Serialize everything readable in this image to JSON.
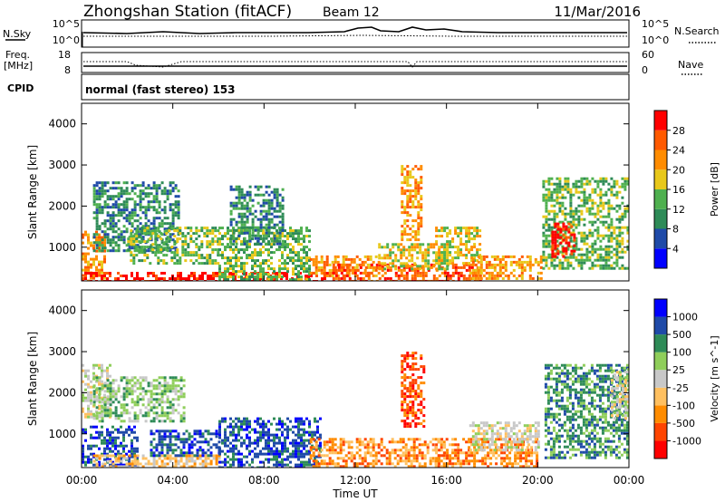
{
  "header": {
    "title": "Zhongshan Station (fitACF)",
    "beam": "Beam 12",
    "date": "11/Mar/2016"
  },
  "panels": {
    "nsky": {
      "left_label": "N.Sky",
      "left_ticks": [
        "10^5",
        "10^0"
      ],
      "right_ticks": [
        "10^5",
        "10^0"
      ],
      "right_label": "N.Search"
    },
    "freq": {
      "left_label_1": "Freq.",
      "left_label_2": "[MHz]",
      "left_ticks": [
        "18",
        "8"
      ],
      "right_ticks": [
        "60",
        "0"
      ],
      "right_label": "Nave"
    },
    "cpid": {
      "left_label": "CPID",
      "text": "normal (fast stereo) 153"
    }
  },
  "colors": {
    "power_scale": [
      "#0000ff",
      "#1f4aa8",
      "#2e8b57",
      "#4fb04f",
      "#e8c81a",
      "#ff8c00",
      "#ff5a00",
      "#ff0000"
    ],
    "velocity_scale": [
      "#ff0000",
      "#ff4500",
      "#ff8c00",
      "#ffc060",
      "#c8c8c8",
      "#8fce5a",
      "#2e8b57",
      "#1f4aa8",
      "#0000ff"
    ]
  },
  "chart_data": [
    {
      "type": "heatmap",
      "title": "",
      "xlabel": "",
      "ylabel": "Slant Range [km]",
      "x_ticks": [
        "00:00",
        "04:00",
        "08:00",
        "12:00",
        "16:00",
        "20:00",
        "00:00"
      ],
      "y_ticks": [
        "1000",
        "2000",
        "3000",
        "4000"
      ],
      "ylim": [
        180,
        4500
      ],
      "colorbar": {
        "label": "Power [dB]",
        "ticks": [
          "4",
          "8",
          "12",
          "16",
          "20",
          "24",
          "28"
        ],
        "range": [
          0,
          32
        ]
      },
      "echo_regions": [
        {
          "t": [
            0.0,
            1.0
          ],
          "r": [
            180,
            1400
          ],
          "c": 5
        },
        {
          "t": [
            0.5,
            4.2
          ],
          "r": [
            900,
            2600
          ],
          "c": 2
        },
        {
          "t": [
            0.0,
            10.8
          ],
          "r": [
            180,
            400
          ],
          "c": 7
        },
        {
          "t": [
            2.0,
            6.0
          ],
          "r": [
            600,
            1500
          ],
          "c": 3
        },
        {
          "t": [
            6.0,
            10.0
          ],
          "r": [
            180,
            1500
          ],
          "c": 3
        },
        {
          "t": [
            6.5,
            8.8
          ],
          "r": [
            1100,
            2500
          ],
          "c": 2
        },
        {
          "t": [
            10.0,
            13.0
          ],
          "r": [
            300,
            800
          ],
          "c": 5
        },
        {
          "t": [
            11.0,
            17.5
          ],
          "r": [
            180,
            600
          ],
          "c": 6
        },
        {
          "t": [
            13.0,
            16.0
          ],
          "r": [
            500,
            1100
          ],
          "c": 4
        },
        {
          "t": [
            14.0,
            14.9
          ],
          "r": [
            1200,
            3000
          ],
          "c": 5
        },
        {
          "t": [
            15.5,
            17.5
          ],
          "r": [
            600,
            1500
          ],
          "c": 4
        },
        {
          "t": [
            17.0,
            20.2
          ],
          "r": [
            250,
            800
          ],
          "c": 5
        },
        {
          "t": [
            20.2,
            24.0
          ],
          "r": [
            500,
            2700
          ],
          "c": 3
        },
        {
          "t": [
            20.6,
            21.6
          ],
          "r": [
            800,
            1600
          ],
          "c": 7
        }
      ]
    },
    {
      "type": "heatmap",
      "title": "",
      "xlabel": "Time UT",
      "ylabel": "Slant Range [km]",
      "x_ticks": [
        "00:00",
        "04:00",
        "08:00",
        "12:00",
        "16:00",
        "20:00",
        "00:00"
      ],
      "y_ticks": [
        "1000",
        "2000",
        "3000",
        "4000"
      ],
      "ylim": [
        180,
        4500
      ],
      "colorbar": {
        "label": "Velocity [m s^-1]",
        "ticks": [
          "-1000",
          "-500",
          "-100",
          "-25",
          "25",
          "100",
          "500",
          "1000"
        ],
        "range": [
          -1250,
          1250
        ]
      },
      "echo_regions": [
        {
          "t": [
            0.0,
            1.2
          ],
          "r": [
            1400,
            2700
          ],
          "c": 4
        },
        {
          "t": [
            0.0,
            2.5
          ],
          "r": [
            250,
            1200
          ],
          "c": 7
        },
        {
          "t": [
            0.5,
            4.5
          ],
          "r": [
            1300,
            2400
          ],
          "c": 5
        },
        {
          "t": [
            0.5,
            6.0
          ],
          "r": [
            180,
            500
          ],
          "c": 3
        },
        {
          "t": [
            3.0,
            6.0
          ],
          "r": [
            500,
            1100
          ],
          "c": 7
        },
        {
          "t": [
            6.0,
            10.5
          ],
          "r": [
            180,
            1400
          ],
          "c": 7
        },
        {
          "t": [
            10.0,
            16.0
          ],
          "r": [
            180,
            900
          ],
          "c": 2
        },
        {
          "t": [
            14.0,
            15.0
          ],
          "r": [
            1200,
            3000
          ],
          "c": 1
        },
        {
          "t": [
            15.5,
            20.0
          ],
          "r": [
            180,
            900
          ],
          "c": 2
        },
        {
          "t": [
            17.0,
            20.0
          ],
          "r": [
            600,
            1300
          ],
          "c": 4
        },
        {
          "t": [
            20.3,
            24.0
          ],
          "r": [
            400,
            2700
          ],
          "c": 6
        },
        {
          "t": [
            23.2,
            24.0
          ],
          "r": [
            1400,
            2600
          ],
          "c": 4
        }
      ]
    }
  ]
}
